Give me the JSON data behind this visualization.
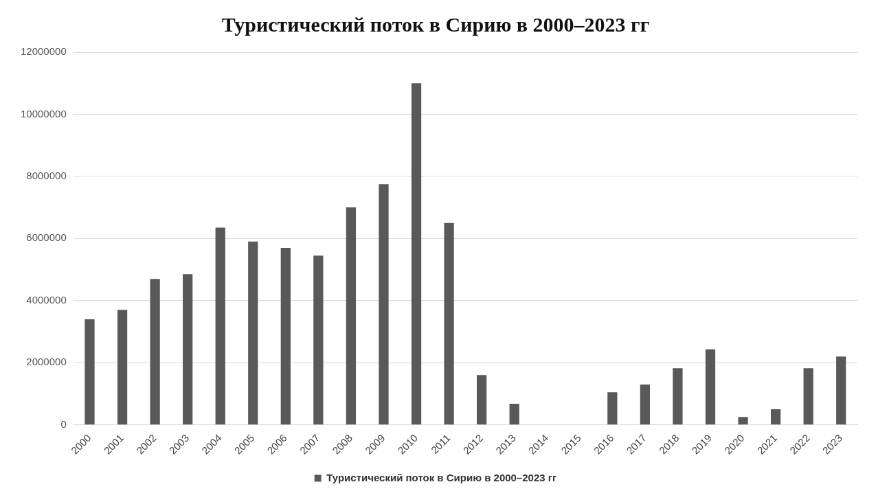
{
  "chart_data": {
    "type": "bar",
    "title": "Туристический поток в Сирию в 2000–2023 гг",
    "categories": [
      "2000",
      "2001",
      "2002",
      "2003",
      "2004",
      "2005",
      "2006",
      "2007",
      "2008",
      "2009",
      "2010",
      "2011",
      "2012",
      "2013",
      "2014",
      "2015",
      "2016",
      "2017",
      "2018",
      "2019",
      "2020",
      "2021",
      "2022",
      "2023"
    ],
    "series": [
      {
        "name": "Туристический поток в Сирию в 2000–2023 гг",
        "color": "#595959",
        "values": [
          3400000,
          3700000,
          4700000,
          4850000,
          6350000,
          5900000,
          5700000,
          5450000,
          7000000,
          7750000,
          11000000,
          6500000,
          1600000,
          680000,
          0,
          0,
          1050000,
          1300000,
          1820000,
          2430000,
          250000,
          500000,
          1820000,
          2200000
        ]
      }
    ],
    "ylim": [
      0,
      12000000
    ],
    "yticks": [
      0,
      2000000,
      4000000,
      6000000,
      8000000,
      10000000,
      12000000
    ],
    "grid": "y",
    "legend": "bottom"
  }
}
